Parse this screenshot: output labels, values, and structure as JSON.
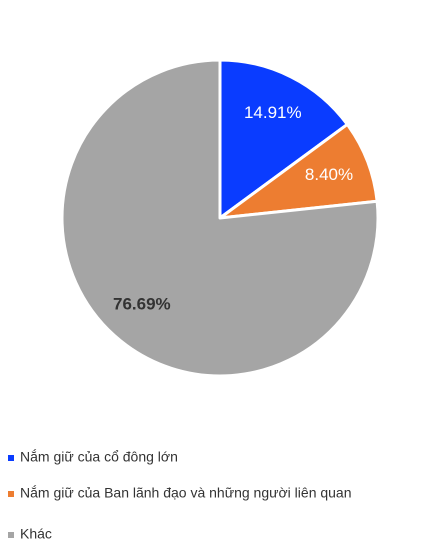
{
  "chart_data": {
    "type": "pie",
    "categories": [
      "Nắm giữ của cổ đông lớn",
      "Nắm giữ của Ban lãnh đạo và những người liên quan",
      "Khác"
    ],
    "values": [
      14.91,
      8.4,
      76.69
    ],
    "value_labels": [
      "14.91%",
      "8.40%",
      "76.69%"
    ],
    "colors": [
      "#0a3cff",
      "#ed7d31",
      "#a5a5a5"
    ],
    "legend": "bottom"
  }
}
